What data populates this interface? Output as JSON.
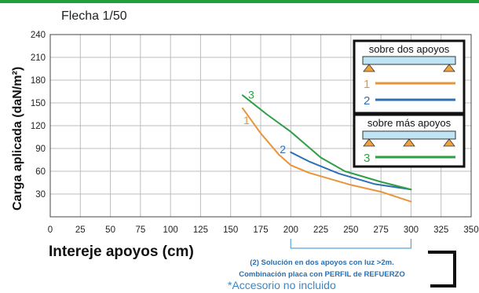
{
  "chart_data": {
    "type": "line",
    "title": "Flecha 1/50",
    "xlabel": "Intereje apoyos (cm)",
    "ylabel": "Carga aplicada (daN/m²)",
    "xlim": [
      0,
      350
    ],
    "ylim": [
      0,
      240
    ],
    "xticks": [
      "0",
      "25",
      "50",
      "75",
      "100",
      "125",
      "150",
      "175",
      "200",
      "225",
      "250",
      "275",
      "300",
      "325",
      "350"
    ],
    "yticks": [
      "30",
      "60",
      "90",
      "120",
      "150",
      "180",
      "210",
      "240"
    ],
    "grid": true,
    "series": [
      {
        "name": "1",
        "color": "#e8953a",
        "x": [
          160,
          175,
          190,
          200,
          215,
          250,
          275,
          300
        ],
        "y": [
          143,
          110,
          82,
          68,
          58,
          42,
          33,
          20
        ]
      },
      {
        "name": "2",
        "color": "#2f6fb3",
        "x": [
          200,
          215,
          240,
          270,
          300
        ],
        "y": [
          85,
          73,
          57,
          43,
          36
        ]
      },
      {
        "name": "3",
        "color": "#2e9e44",
        "x": [
          160,
          180,
          200,
          225,
          245,
          275,
          300
        ],
        "y": [
          160,
          135,
          112,
          78,
          60,
          46,
          36
        ]
      }
    ],
    "legend": {
      "placement": "top-right",
      "group1_title": "sobre dos apoyos",
      "group2_title": "sobre más apoyos"
    },
    "bracket_range": [
      200,
      300
    ],
    "note_line1": "(2) Solución en dos apoyos con luz >2m.",
    "note_line2": "Combinación placa con PERFIL de REFUERZO",
    "footnote": "*Accesorio no incluido"
  }
}
